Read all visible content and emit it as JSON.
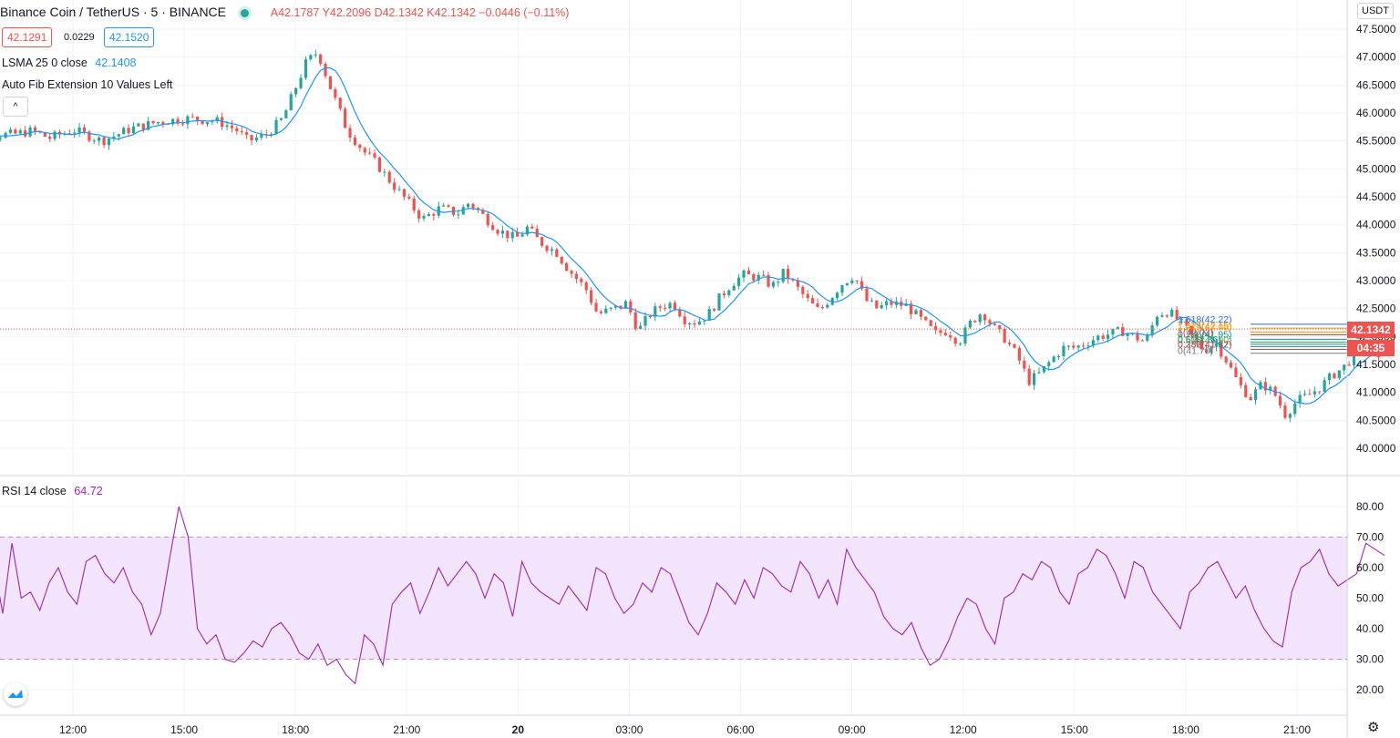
{
  "header": {
    "symbol": "Binance Coin / TetherUS",
    "interval": "5",
    "exchange": "BINANCE",
    "sep1": "·",
    "sep2": "·",
    "ohlc": {
      "open_label": "A",
      "open": "42.1787",
      "high_label": "Y",
      "high": "42.2096",
      "low_label": "D",
      "low": "42.1342",
      "close_label": "K",
      "close": "42.1342",
      "change": "−0.0446 (−0.11%)"
    },
    "bid": "42.1291",
    "spread": "0.0229",
    "ask": "42.1520",
    "status_color": "#26a69a"
  },
  "indicators": {
    "lsma_label": "LSMA 25 0 close",
    "lsma_value": "42.1408",
    "fib_label": "Auto Fib Extension 10 Values Left",
    "collapse_icon": "^",
    "rsi_label": "RSI 14 close",
    "rsi_value": "64.72"
  },
  "price_axis": {
    "currency": "USDT",
    "last_price": "42.1342",
    "countdown": "04:35"
  },
  "fib_levels": [
    {
      "label": "1.618(42.22)",
      "color": "#2962ff"
    },
    {
      "label": "1.414(42.15)",
      "color": "#ff9800"
    },
    {
      "label": "1.272(42.08)",
      "color": "#ff9800"
    },
    {
      "label": "1(42.03)",
      "color": "#f23645"
    },
    {
      "label": "0.786(41.95)",
      "color": "#089981"
    },
    {
      "label": "0.618(41.90)",
      "color": "#4caf50"
    },
    {
      "label": "0.5(41.86)",
      "color": "#089981"
    },
    {
      "label": "0.382(41.82)",
      "color": "#089981"
    },
    {
      "label": "0.236(41.77)",
      "color": "#f23645"
    },
    {
      "label": "0(41.70)",
      "color": "#787b86"
    }
  ],
  "colors": {
    "up": "#26a69a",
    "down": "#ef5350",
    "lsma": "#2196f3",
    "rsi_line": "#9c27b0",
    "rsi_band": "#f3e5fd",
    "grid": "#f0f3fa"
  },
  "chart_data": [
    {
      "type": "candlestick",
      "title": "Binance Coin / TetherUS · 5 · BINANCE",
      "x_tick_labels": [
        "12:00",
        "15:00",
        "18:00",
        "21:00",
        "20",
        "03:00",
        "06:00",
        "09:00",
        "12:00",
        "15:00",
        "18:00",
        "21:00"
      ],
      "y_tick_labels": [
        "40.0000",
        "40.5000",
        "41.0000",
        "41.5000",
        "42.0000",
        "42.5000",
        "43.0000",
        "43.5000",
        "44.0000",
        "44.5000",
        "45.0000",
        "45.5000",
        "46.0000",
        "46.5000",
        "47.0000",
        "47.5000"
      ],
      "ylim": [
        40.0,
        47.5
      ],
      "x_hours": [
        10,
        34.5
      ],
      "close_path": [
        [
          10.0,
          45.75
        ],
        [
          10.5,
          45.6
        ],
        [
          11.0,
          45.62
        ],
        [
          11.3,
          45.68
        ],
        [
          11.6,
          45.55
        ],
        [
          12.0,
          45.7
        ],
        [
          12.5,
          45.5
        ],
        [
          13.0,
          45.72
        ],
        [
          13.5,
          45.85
        ],
        [
          14.0,
          45.9
        ],
        [
          14.5,
          45.85
        ],
        [
          14.8,
          45.7
        ],
        [
          15.0,
          45.5
        ],
        [
          15.3,
          45.6
        ],
        [
          15.6,
          45.9
        ],
        [
          15.8,
          46.4
        ],
        [
          16.0,
          46.9
        ],
        [
          16.2,
          47.1
        ],
        [
          16.4,
          46.5
        ],
        [
          16.7,
          45.7
        ],
        [
          17.0,
          45.3
        ],
        [
          17.2,
          45.1
        ],
        [
          17.5,
          44.7
        ],
        [
          17.8,
          44.35
        ],
        [
          18.0,
          44.1
        ],
        [
          18.3,
          44.3
        ],
        [
          18.6,
          44.2
        ],
        [
          18.8,
          44.4
        ],
        [
          19.0,
          44.2
        ],
        [
          19.3,
          43.9
        ],
        [
          19.6,
          43.75
        ],
        [
          19.8,
          43.95
        ],
        [
          20.0,
          43.7
        ],
        [
          20.3,
          43.5
        ],
        [
          20.5,
          43.2
        ],
        [
          20.8,
          42.85
        ],
        [
          21.0,
          42.4
        ],
        [
          21.3,
          42.5
        ],
        [
          21.5,
          42.6
        ],
        [
          21.7,
          42.1
        ],
        [
          21.9,
          42.4
        ],
        [
          22.1,
          42.55
        ],
        [
          22.3,
          42.6
        ],
        [
          22.5,
          42.3
        ],
        [
          22.7,
          42.25
        ],
        [
          22.9,
          42.4
        ],
        [
          23.1,
          42.7
        ],
        [
          23.3,
          42.95
        ],
        [
          23.5,
          43.1
        ],
        [
          23.8,
          43.05
        ],
        [
          24.0,
          42.9
        ],
        [
          24.2,
          43.15
        ],
        [
          24.4,
          42.9
        ],
        [
          24.6,
          42.65
        ],
        [
          24.8,
          42.45
        ],
        [
          25.0,
          42.7
        ],
        [
          25.2,
          42.95
        ],
        [
          25.4,
          43.1
        ],
        [
          25.6,
          42.65
        ],
        [
          25.8,
          42.5
        ],
        [
          26.0,
          42.6
        ],
        [
          26.3,
          42.55
        ],
        [
          26.5,
          42.35
        ],
        [
          26.8,
          42.05
        ],
        [
          27.0,
          42.1
        ],
        [
          27.2,
          41.9
        ],
        [
          27.4,
          42.25
        ],
        [
          27.6,
          42.45
        ],
        [
          27.8,
          42.15
        ],
        [
          28.0,
          41.95
        ],
        [
          28.2,
          41.65
        ],
        [
          28.4,
          41.2
        ],
        [
          28.6,
          41.35
        ],
        [
          28.8,
          41.6
        ],
        [
          29.0,
          41.8
        ],
        [
          29.2,
          41.8
        ],
        [
          29.4,
          41.9
        ],
        [
          29.6,
          42.0
        ],
        [
          29.8,
          42.05
        ],
        [
          30.0,
          42.1
        ],
        [
          30.2,
          42.0
        ],
        [
          30.4,
          41.9
        ],
        [
          30.6,
          42.4
        ],
        [
          30.8,
          42.45
        ],
        [
          31.0,
          42.25
        ],
        [
          31.2,
          42.0
        ],
        [
          31.4,
          41.75
        ],
        [
          31.6,
          41.9
        ],
        [
          31.8,
          41.55
        ],
        [
          32.0,
          41.15
        ],
        [
          32.2,
          40.9
        ],
        [
          32.4,
          41.15
        ],
        [
          32.6,
          41.0
        ],
        [
          32.8,
          40.6
        ],
        [
          33.0,
          40.85
        ],
        [
          33.2,
          40.95
        ],
        [
          33.4,
          41.1
        ],
        [
          33.6,
          41.3
        ],
        [
          33.8,
          41.45
        ],
        [
          34.0,
          41.7
        ],
        [
          34.2,
          41.8
        ],
        [
          34.4,
          41.55
        ]
      ]
    },
    {
      "type": "line",
      "title": "RSI 14 close",
      "y_tick_labels": [
        "20.00",
        "30.00",
        "40.00",
        "50.00",
        "60.00",
        "70.00",
        "80.00"
      ],
      "ylim": [
        15,
        85
      ],
      "bands": [
        30,
        70
      ],
      "series": [
        {
          "name": "RSI 14 close",
          "values": [
            70,
            60,
            55,
            48,
            62,
            45,
            68,
            50,
            52,
            46,
            55,
            60,
            52,
            48,
            62,
            64,
            58,
            55,
            60,
            52,
            48,
            38,
            45,
            63,
            80,
            70,
            40,
            35,
            38,
            30,
            29,
            32,
            36,
            34,
            40,
            42,
            38,
            32,
            30,
            35,
            28,
            30,
            25,
            22,
            38,
            35,
            28,
            48,
            52,
            55,
            45,
            52,
            60,
            54,
            58,
            62,
            58,
            50,
            58,
            55,
            44,
            62,
            55,
            52,
            50,
            48,
            54,
            50,
            46,
            60,
            58,
            50,
            45,
            48,
            55,
            52,
            60,
            58,
            50,
            42,
            38,
            45,
            55,
            52,
            48,
            56,
            50,
            60,
            58,
            54,
            52,
            62,
            58,
            50,
            56,
            48,
            66,
            60,
            56,
            52,
            44,
            40,
            38,
            42,
            34,
            28,
            30,
            36,
            44,
            50,
            48,
            40,
            35,
            50,
            52,
            58,
            56,
            62,
            60,
            52,
            48,
            58,
            60,
            66,
            64,
            58,
            50,
            62,
            60,
            52,
            48,
            44,
            40,
            52,
            55,
            60,
            62,
            56,
            50,
            54,
            46,
            40,
            36,
            34,
            52,
            60,
            62,
            66,
            58,
            54,
            56,
            58,
            68,
            66,
            64
          ]
        }
      ]
    }
  ]
}
